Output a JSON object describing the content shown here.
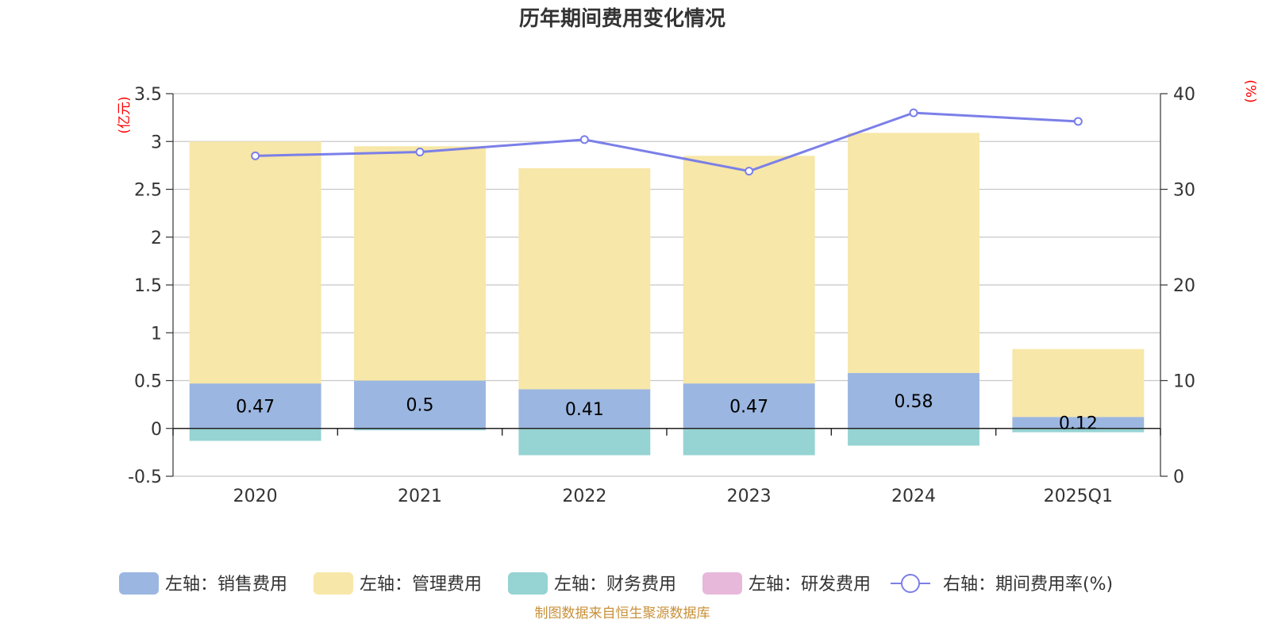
{
  "chart_data": {
    "type": "bar",
    "title": "历年期间费用变化情况",
    "categories": [
      "2020",
      "2021",
      "2022",
      "2023",
      "2024",
      "2025Q1"
    ],
    "y_left": {
      "unit": "(亿元)",
      "ylim": [
        -0.5,
        3.5
      ],
      "ticks": [
        "-0.5",
        "0",
        "0.5",
        "1",
        "1.5",
        "2",
        "2.5",
        "3",
        "3.5"
      ]
    },
    "y_right": {
      "unit": "(%)",
      "ylim": [
        0,
        40
      ],
      "ticks": [
        "0",
        "10",
        "20",
        "30",
        "40"
      ]
    },
    "series": [
      {
        "name": "左轴：销售费用",
        "type": "bar",
        "stack": true,
        "color": "#9bb6e0",
        "values": [
          0.47,
          0.5,
          0.41,
          0.47,
          0.58,
          0.12
        ],
        "labels": [
          "0.47",
          "0.5",
          "0.41",
          "0.47",
          "0.58",
          "0.12"
        ]
      },
      {
        "name": "左轴：管理费用",
        "type": "bar",
        "stack": true,
        "color": "#f7e7a8",
        "values": [
          2.53,
          2.45,
          2.31,
          2.38,
          2.51,
          0.71
        ]
      },
      {
        "name": "左轴：财务费用",
        "type": "bar",
        "stack": true,
        "color": "#96d3d3",
        "values": [
          -0.13,
          -0.02,
          -0.28,
          -0.28,
          -0.18,
          -0.04
        ]
      },
      {
        "name": "左轴：研发费用",
        "type": "bar",
        "stack": true,
        "color": "#e8b8da",
        "values": [
          0,
          0,
          0,
          0,
          0,
          0
        ]
      },
      {
        "name": "右轴：期间费用率(%)",
        "type": "line",
        "axis": "right",
        "color": "#7b7fe8",
        "values": [
          33.5,
          33.9,
          35.2,
          31.9,
          38.0,
          37.1
        ]
      }
    ],
    "grid": true,
    "legend_position": "bottom"
  },
  "footer": {
    "source": "制图数据来自恒生聚源数据库"
  }
}
